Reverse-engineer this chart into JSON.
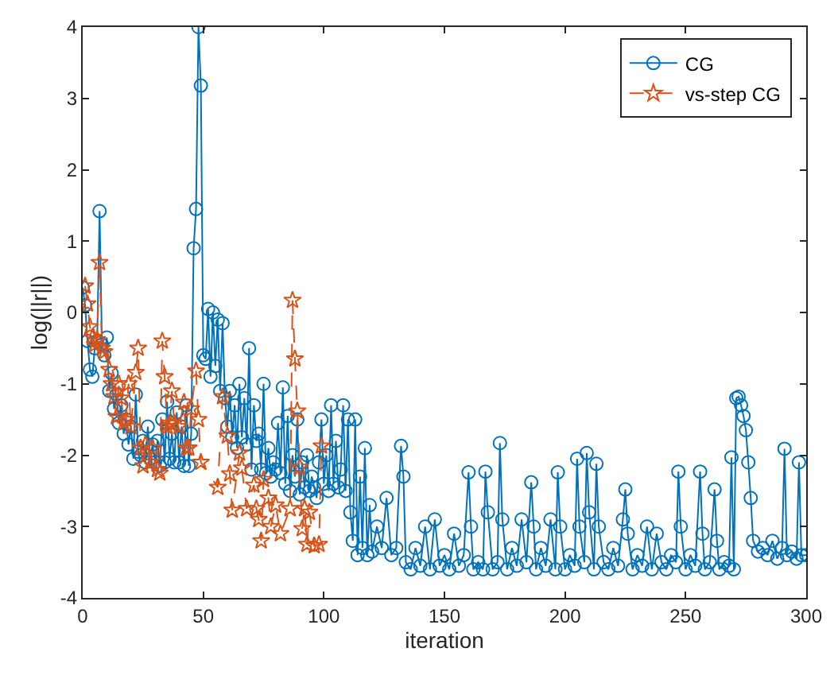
{
  "chart_data": {
    "type": "line",
    "xlabel": "iteration",
    "ylabel": "log(||r||)",
    "xlim": [
      0,
      300
    ],
    "xticks": [
      0,
      50,
      100,
      150,
      200,
      250,
      300
    ],
    "ylim": [
      -4,
      4
    ],
    "yticks": [
      -4,
      -3,
      -2,
      -1,
      0,
      1,
      2,
      3,
      4
    ],
    "legend": "top right",
    "series": [
      {
        "name": "CG",
        "color": "#0072bd",
        "marker": "circle",
        "line_style": "solid",
        "x": [
          0,
          1,
          2,
          3,
          4,
          5,
          6,
          7,
          8,
          9,
          10,
          11,
          12,
          13,
          14,
          15,
          16,
          17,
          18,
          19,
          20,
          21,
          22,
          23,
          24,
          25,
          26,
          27,
          28,
          29,
          30,
          31,
          32,
          33,
          34,
          35,
          36,
          37,
          38,
          39,
          40,
          41,
          42,
          43,
          44,
          45,
          46,
          47,
          48,
          49,
          50,
          51,
          52,
          53,
          54,
          55,
          56,
          57,
          58,
          59,
          60,
          61,
          62,
          63,
          64,
          65,
          66,
          67,
          68,
          69,
          70,
          71,
          72,
          73,
          74,
          75,
          76,
          77,
          78,
          79,
          80,
          81,
          82,
          83,
          84,
          85,
          86,
          87,
          88,
          89,
          90,
          91,
          92,
          93,
          94,
          95,
          96,
          97,
          98,
          99,
          100,
          101,
          102,
          103,
          104,
          105,
          106,
          107,
          108,
          109,
          110,
          111,
          112,
          113,
          114,
          115,
          116,
          117,
          118,
          119,
          120,
          122,
          124,
          126,
          128,
          130,
          132,
          133,
          134,
          136,
          138,
          140,
          142,
          144,
          146,
          148,
          150,
          152,
          154,
          156,
          158,
          160,
          161,
          162,
          164,
          166,
          167,
          168,
          170,
          172,
          173,
          174,
          176,
          178,
          180,
          182,
          184,
          186,
          187,
          188,
          190,
          192,
          194,
          196,
          197,
          198,
          200,
          202,
          204,
          205,
          206,
          208,
          209,
          210,
          212,
          213,
          214,
          216,
          218,
          220,
          222,
          224,
          225,
          226,
          228,
          230,
          232,
          234,
          236,
          238,
          240,
          242,
          244,
          246,
          247,
          248,
          250,
          252,
          254,
          256,
          257,
          258,
          260,
          262,
          263,
          264,
          266,
          268,
          269,
          270,
          271,
          272,
          273,
          274,
          275,
          276,
          277,
          278,
          280,
          282,
          284,
          286,
          288,
          290,
          291,
          292,
          294,
          296,
          297,
          298,
          300
        ],
        "values": [
          0.35,
          0.1,
          -0.4,
          -0.8,
          -0.9,
          -0.5,
          -0.4,
          1.42,
          -0.45,
          -0.6,
          -0.35,
          -1.1,
          -0.85,
          -1.35,
          -1.15,
          -1.55,
          -1.3,
          -1.7,
          -1.5,
          -1.85,
          -1.6,
          -2.05,
          -1.15,
          -1.95,
          -2.0,
          -1.8,
          -2.1,
          -1.6,
          -2.05,
          -1.85,
          -2.1,
          -1.8,
          -2.15,
          -1.5,
          -2.1,
          -1.25,
          -2.05,
          -1.7,
          -2.1,
          -1.4,
          -2.1,
          -1.6,
          -2.15,
          -1.3,
          -2.15,
          -1.7,
          0.9,
          1.45,
          4.0,
          3.18,
          -0.6,
          -0.65,
          0.05,
          -0.9,
          0.0,
          -0.75,
          -0.1,
          -1.1,
          -0.15,
          -1.2,
          -1.6,
          -1.1,
          -1.75,
          -1.3,
          -1.9,
          -1.0,
          -1.75,
          -1.2,
          -1.85,
          -0.5,
          -2.2,
          -1.3,
          -1.8,
          -1.7,
          -2.2,
          -1.0,
          -2.25,
          -1.9,
          -2.3,
          -2.1,
          -2.2,
          -1.55,
          -2.25,
          -1.05,
          -2.4,
          -1.45,
          -2.5,
          -2.0,
          -2.3,
          -1.5,
          -2.55,
          -2.1,
          -2.45,
          -2.0,
          -2.5,
          -2.3,
          -2.45,
          -2.6,
          -2.1,
          -1.5,
          -2.4,
          -2.0,
          -2.5,
          -1.3,
          -2.4,
          -1.8,
          -2.45,
          -2.2,
          -1.3,
          -2.5,
          -1.5,
          -2.8,
          -3.2,
          -1.5,
          -3.4,
          -2.3,
          -3.3,
          -1.9,
          -3.4,
          -2.7,
          -3.35,
          -3.0,
          -3.3,
          -2.6,
          -3.4,
          -3.3,
          -1.87,
          -2.3,
          -3.5,
          -3.6,
          -3.3,
          -3.55,
          -3.0,
          -3.6,
          -2.9,
          -3.55,
          -3.4,
          -3.6,
          -3.1,
          -3.55,
          -3.4,
          -2.24,
          -3.0,
          -3.6,
          -3.5,
          -3.6,
          -2.23,
          -2.8,
          -3.6,
          -3.5,
          -1.83,
          -2.9,
          -3.6,
          -3.3,
          -3.55,
          -2.9,
          -3.5,
          -2.38,
          -3.0,
          -3.6,
          -3.3,
          -3.55,
          -2.9,
          -3.6,
          -2.24,
          -3.0,
          -3.6,
          -3.4,
          -3.55,
          -2.05,
          -3.0,
          -3.5,
          -1.97,
          -2.8,
          -3.6,
          -2.12,
          -3.0,
          -3.5,
          -3.6,
          -3.3,
          -3.55,
          -2.9,
          -2.48,
          -3.1,
          -3.6,
          -3.4,
          -3.55,
          -3.0,
          -3.6,
          -3.1,
          -3.5,
          -3.6,
          -3.4,
          -3.5,
          -2.23,
          -3.0,
          -3.6,
          -3.4,
          -3.55,
          -2.23,
          -3.1,
          -3.6,
          -3.5,
          -2.48,
          -3.2,
          -3.6,
          -3.5,
          -3.55,
          -2.03,
          -3.6,
          -1.2,
          -1.18,
          -1.3,
          -1.45,
          -1.65,
          -2.1,
          -2.6,
          -3.2,
          -3.35,
          -3.3,
          -3.4,
          -3.2,
          -3.45,
          -3.3,
          -1.91,
          -3.4,
          -3.35,
          -3.45,
          -2.1,
          -3.4,
          -3.4
        ]
      },
      {
        "name": "vs-step CG",
        "color": "#d95319",
        "marker": "star",
        "line_style": "dashed",
        "x": [
          1,
          2,
          3,
          4,
          5,
          6,
          7,
          8,
          9,
          11,
          12,
          13,
          14,
          15,
          16,
          17,
          18,
          19,
          20,
          22,
          23,
          24,
          25,
          26,
          28,
          29,
          31,
          32,
          33,
          34,
          35,
          36,
          37,
          38,
          40,
          42,
          43,
          44,
          45,
          47,
          48,
          49,
          56,
          58,
          60,
          61,
          62,
          65,
          66,
          68,
          71,
          72,
          73,
          74,
          75,
          77,
          78,
          80,
          82,
          86,
          87,
          88,
          89,
          90,
          91,
          92,
          93,
          94,
          96,
          98,
          99
        ],
        "values": [
          0.37,
          0.12,
          -0.2,
          -0.35,
          -0.45,
          -0.38,
          0.7,
          -0.5,
          -0.55,
          -0.8,
          -1.0,
          -1.18,
          -1.46,
          -1.0,
          -1.2,
          -1.55,
          -1.5,
          -1.0,
          -1.6,
          -0.84,
          -0.5,
          -1.9,
          -2.15,
          -1.85,
          -2.1,
          -1.9,
          -2.2,
          -2.25,
          -0.4,
          -0.9,
          -1.6,
          -1.55,
          -1.1,
          -1.55,
          -1.6,
          -1.26,
          -1.9,
          -1.9,
          -1.35,
          -0.82,
          -1.5,
          -2.1,
          -2.45,
          -1.18,
          -1.73,
          -2.26,
          -2.77,
          -1.97,
          -2.18,
          -2.75,
          -2.42,
          -2.75,
          -2.9,
          -3.2,
          -2.34,
          -2.6,
          -3.0,
          -2.7,
          -3.1,
          -2.75,
          0.17,
          -0.65,
          -1.38,
          -2.17,
          -3.03,
          -2.75,
          -3.25,
          -2.8,
          -3.27,
          -3.25,
          -1.87
        ]
      }
    ]
  }
}
